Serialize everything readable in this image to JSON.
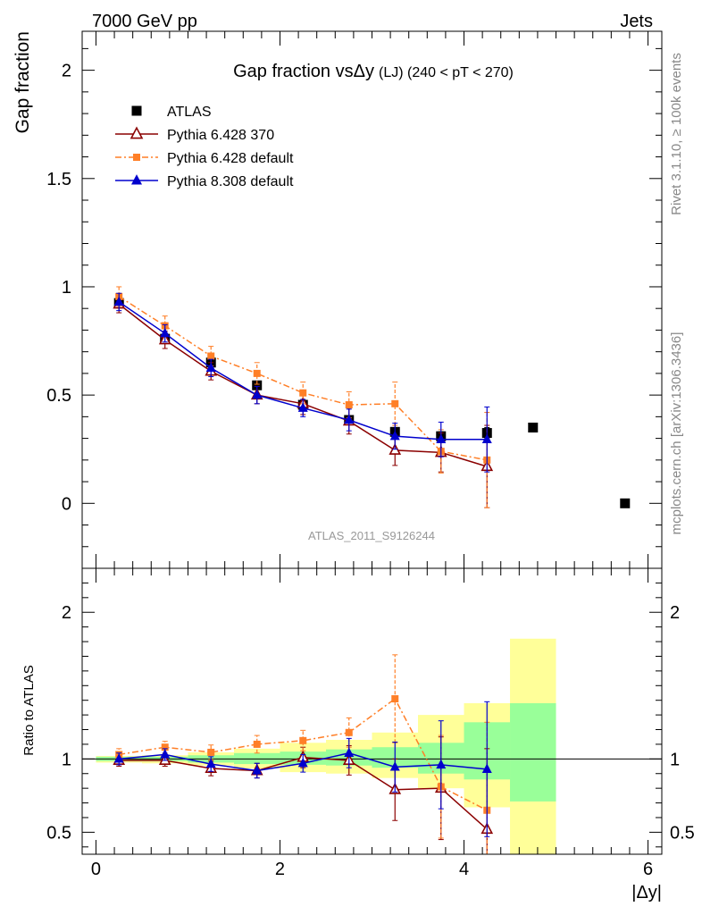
{
  "header": {
    "energy_label": "7000 GeV pp",
    "category_label": "Jets"
  },
  "side_labels": {
    "rivet": "Rivet 3.1.10, ≥ 100k events",
    "mcplots": "mcplots.cern.ch [arXiv:1306.3436]"
  },
  "chart_data": [
    {
      "type": "scatter",
      "panel": "main",
      "title_main": "Gap fraction vs",
      "title_sym": "Δy",
      "title_sub": "(LJ) (240 < pT < 270)",
      "ylabel": "Gap fraction",
      "xlabel": "",
      "watermark": "ATLAS_2011_S9126244",
      "xlim": [
        -0.15,
        6.15
      ],
      "ylim": [
        -0.3,
        2.18
      ],
      "y_ticks": [
        0,
        0.5,
        1,
        1.5,
        2
      ],
      "y_tick_labels": [
        "0",
        "0.5",
        "1",
        "1.5",
        "2"
      ],
      "grid": false,
      "legend_position": "top-left",
      "x": [
        0.25,
        0.75,
        1.25,
        1.75,
        2.25,
        2.75,
        3.25,
        3.75,
        4.25,
        4.75,
        5.75
      ],
      "series": [
        {
          "name": "ATLAS",
          "color": "#000000",
          "marker": "square",
          "line": "none",
          "values": [
            0.925,
            0.76,
            0.65,
            0.545,
            0.455,
            0.385,
            0.33,
            0.31,
            0.325,
            0.35,
            0.0
          ],
          "errors": [
            0.015,
            0.015,
            0.015,
            0.015,
            0.015,
            0.015,
            0.02,
            0.02,
            0.025,
            0.02,
            0.01
          ]
        },
        {
          "name": "Pythia 6.428 370",
          "color": "#8b0000",
          "marker": "open-triangle",
          "line": "solid",
          "values": [
            0.92,
            0.755,
            0.61,
            0.5,
            0.46,
            0.38,
            0.245,
            0.235,
            0.17
          ],
          "errors": [
            0.04,
            0.04,
            0.04,
            0.04,
            0.05,
            0.06,
            0.07,
            0.09,
            0.19
          ]
        },
        {
          "name": "Pythia 6.428 default",
          "color": "#ff7f27",
          "marker": "square",
          "line": "dashdot",
          "values": [
            0.955,
            0.82,
            0.68,
            0.6,
            0.51,
            0.455,
            0.46,
            0.24,
            0.2
          ],
          "errors": [
            0.045,
            0.045,
            0.045,
            0.05,
            0.05,
            0.06,
            0.1,
            0.1,
            0.22
          ]
        },
        {
          "name": "Pythia 8.308 default",
          "color": "#0000cd",
          "marker": "triangle",
          "line": "solid",
          "values": [
            0.93,
            0.785,
            0.625,
            0.5,
            0.44,
            0.385,
            0.31,
            0.295,
            0.295
          ],
          "errors": [
            0.04,
            0.04,
            0.04,
            0.04,
            0.04,
            0.05,
            0.06,
            0.08,
            0.15
          ]
        }
      ]
    },
    {
      "type": "scatter",
      "panel": "ratio",
      "ylabel": "Ratio to ATLAS",
      "xlabel": "|Δy|",
      "xlim": [
        -0.15,
        6.15
      ],
      "ylim": [
        0.35,
        2.3
      ],
      "y_ticks": [
        0.5,
        1,
        2
      ],
      "y_tick_labels": [
        "0.5",
        "1",
        "2"
      ],
      "x_ticks": [
        0,
        2,
        4,
        6
      ],
      "x_tick_labels": [
        "0",
        "2",
        "4",
        "6"
      ],
      "reference_line": 1,
      "grid": false,
      "bands": {
        "edges": [
          0,
          0.5,
          1,
          1.5,
          2,
          2.5,
          3,
          3.5,
          4,
          4.5,
          5
        ],
        "green_low": [
          0.985,
          0.985,
          0.975,
          0.965,
          0.96,
          0.955,
          0.94,
          0.9,
          0.86,
          0.71
        ],
        "green_high": [
          1.015,
          1.015,
          1.025,
          1.04,
          1.05,
          1.065,
          1.08,
          1.11,
          1.25,
          1.38
        ],
        "yellow_low": [
          0.975,
          0.97,
          0.955,
          0.935,
          0.91,
          0.9,
          0.87,
          0.8,
          0.67,
          0.0
        ],
        "yellow_high": [
          1.02,
          1.025,
          1.045,
          1.07,
          1.11,
          1.13,
          1.18,
          1.3,
          1.38,
          1.82
        ],
        "green_color": "#99ff99",
        "yellow_color": "#ffff99"
      },
      "x": [
        0.25,
        0.75,
        1.25,
        1.75,
        2.25,
        2.75,
        3.25,
        3.75,
        4.25
      ],
      "series": [
        {
          "name": "Pythia 6.428 370",
          "color": "#8b0000",
          "marker": "open-triangle",
          "line": "solid",
          "values": [
            0.99,
            0.99,
            0.935,
            0.92,
            1.01,
            0.99,
            0.79,
            0.8,
            0.52
          ],
          "errors": [
            0.04,
            0.04,
            0.05,
            0.05,
            0.07,
            0.1,
            0.21,
            0.35,
            0.55
          ]
        },
        {
          "name": "Pythia 6.428 default",
          "color": "#ff7f27",
          "marker": "square",
          "line": "dashdot",
          "values": [
            1.03,
            1.08,
            1.045,
            1.1,
            1.125,
            1.18,
            1.41,
            0.81,
            0.65
          ],
          "errors": [
            0.04,
            0.04,
            0.05,
            0.06,
            0.07,
            0.1,
            0.3,
            0.35,
            0.6
          ]
        },
        {
          "name": "Pythia 8.308 default",
          "color": "#0000cd",
          "marker": "triangle",
          "line": "solid",
          "values": [
            1.0,
            1.03,
            0.965,
            0.92,
            0.97,
            1.04,
            0.945,
            0.96,
            0.93
          ],
          "errors": [
            0.04,
            0.04,
            0.05,
            0.05,
            0.06,
            0.1,
            0.17,
            0.3,
            0.46
          ]
        }
      ]
    }
  ]
}
